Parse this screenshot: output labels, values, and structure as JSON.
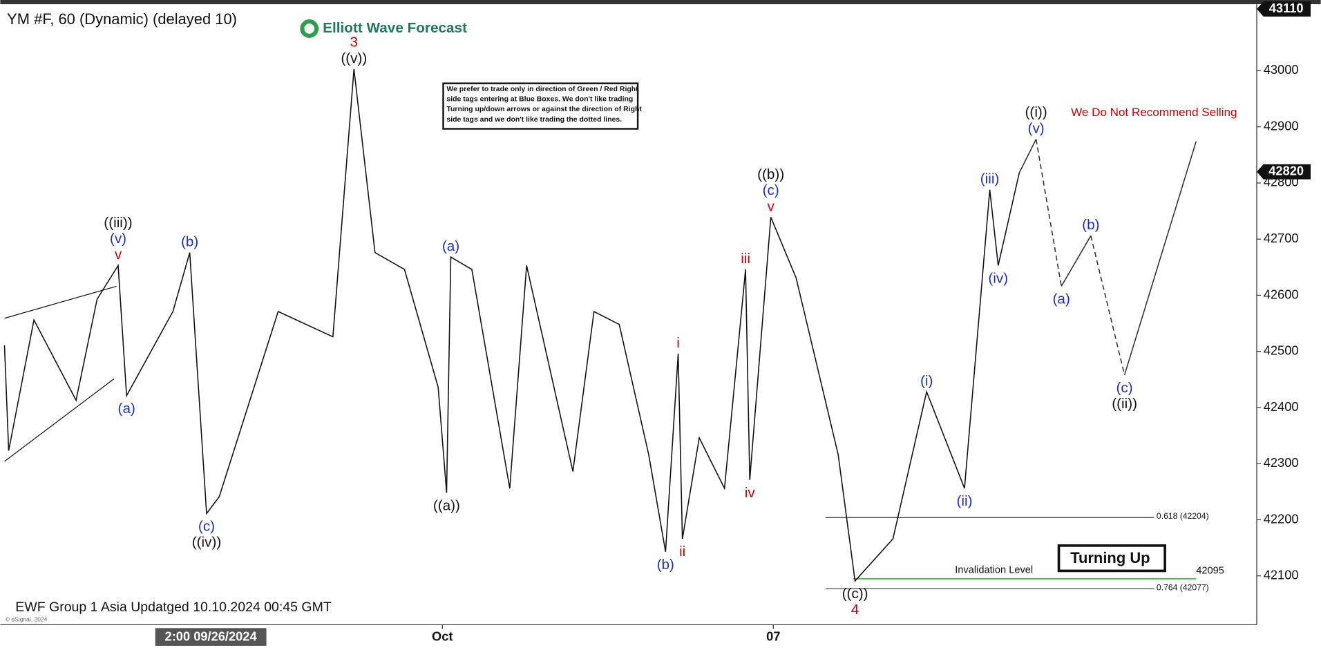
{
  "chart_data": {
    "type": "wave-line",
    "title": "YM #F, 60 (Dynamic) (delayed 10)",
    "logo": "Elliott Wave Forecast",
    "notice": [
      "We prefer to trade only in direction of Green / Red Right",
      "side tags entering at Blue Boxes. We don't like trading",
      "Turning up/down arrows or against the direction of Right",
      "side tags and we don't like trading the dotted lines."
    ],
    "warning": "We Do Not Recommend Selling",
    "footer": "EWF Group 1 Asia Updatged 10.10.2024 00:45 GMT",
    "copyright": "© eSignal, 2024",
    "badge": "Turning Up",
    "cursor_label": {
      "value": 49,
      "label": "2:00 09/26/2024"
    },
    "xlim": [
      0,
      297
    ],
    "xticks": [
      {
        "value": 104,
        "label": "Oct"
      },
      {
        "value": 182.6,
        "label": "07"
      }
    ],
    "ylim": [
      42013,
      43114
    ],
    "yticks": [
      42100,
      42200,
      42300,
      42400,
      42500,
      42600,
      42700,
      42800,
      42900,
      43000
    ],
    "top_price": 43110,
    "last_price": 42820,
    "price": {
      "color": "#111111",
      "points": [
        {
          "x": 0,
          "y": 42511
        },
        {
          "x": 1,
          "y": 42323
        },
        {
          "x": 7,
          "y": 42556
        },
        {
          "x": 17,
          "y": 42413
        },
        {
          "x": 22,
          "y": 42593
        },
        {
          "x": 27,
          "y": 42653,
          "labels": [
            {
              "text": "v",
              "color": "#d00000"
            },
            {
              "text": "(v)",
              "color": "#1a2fbf"
            },
            {
              "text": "((iii))",
              "color": "#111111"
            }
          ]
        },
        {
          "x": 29,
          "y": 42421,
          "labels": [
            {
              "text": "(a)",
              "color": "#1a2fbf"
            }
          ]
        },
        {
          "x": 40,
          "y": 42571
        },
        {
          "x": 44,
          "y": 42676,
          "labels": [
            {
              "text": "(b)",
              "color": "#1a2fbf"
            }
          ]
        },
        {
          "x": 48,
          "y": 42211,
          "labels": [
            {
              "text": "(c)",
              "color": "#1a2fbf"
            },
            {
              "text": "((iv))",
              "color": "#111111"
            }
          ]
        },
        {
          "x": 51,
          "y": 42241
        },
        {
          "x": 65,
          "y": 42571
        },
        {
          "x": 78,
          "y": 42526
        },
        {
          "x": 83,
          "y": 43003,
          "labels": [
            {
              "text": "((v))",
              "color": "#111111"
            },
            {
              "text": "3",
              "color": "#d00000"
            }
          ]
        },
        {
          "x": 88,
          "y": 42676
        },
        {
          "x": 95,
          "y": 42646
        },
        {
          "x": 103,
          "y": 42436
        },
        {
          "x": 105,
          "y": 42248,
          "labels": [
            {
              "text": "((a))",
              "color": "#111111"
            }
          ]
        },
        {
          "x": 106,
          "y": 42668,
          "labels": [
            {
              "text": "(a)",
              "color": "#1a2fbf"
            }
          ]
        },
        {
          "x": 111,
          "y": 42646
        },
        {
          "x": 120,
          "y": 42256
        },
        {
          "x": 124,
          "y": 42653
        },
        {
          "x": 135,
          "y": 42286
        },
        {
          "x": 140,
          "y": 42571
        },
        {
          "x": 146,
          "y": 42548
        },
        {
          "x": 153,
          "y": 42316
        },
        {
          "x": 157,
          "y": 42143,
          "labels": [
            {
              "text": "(b)",
              "color": "#1a2fbf"
            }
          ]
        },
        {
          "x": 160,
          "y": 42496,
          "labels": [
            {
              "text": "i",
              "color": "#d00000"
            }
          ]
        },
        {
          "x": 161,
          "y": 42166,
          "labels": [
            {
              "text": "ii",
              "color": "#d00000"
            }
          ]
        },
        {
          "x": 165,
          "y": 42346
        },
        {
          "x": 171,
          "y": 42256
        },
        {
          "x": 176,
          "y": 42646,
          "labels": [
            {
              "text": "iii",
              "color": "#d00000"
            }
          ]
        },
        {
          "x": 177,
          "y": 42271,
          "labels": [
            {
              "text": "iv",
              "color": "#d00000"
            }
          ]
        },
        {
          "x": 182,
          "y": 42739,
          "labels": [
            {
              "text": "v",
              "color": "#d00000"
            },
            {
              "text": "(c)",
              "color": "#1a2fbf"
            },
            {
              "text": "((b))",
              "color": "#111111"
            }
          ]
        },
        {
          "x": 188,
          "y": 42631
        },
        {
          "x": 198,
          "y": 42316
        },
        {
          "x": 202,
          "y": 42091,
          "labels": [
            {
              "text": "((c))",
              "color": "#111111"
            },
            {
              "text": "4",
              "color": "#d00000"
            }
          ]
        },
        {
          "x": 211,
          "y": 42166
        },
        {
          "x": 219,
          "y": 42428,
          "labels": [
            {
              "text": "(i)",
              "color": "#1a2fbf"
            }
          ]
        },
        {
          "x": 228,
          "y": 42256,
          "labels": [
            {
              "text": "(ii)",
              "color": "#1a2fbf"
            }
          ]
        },
        {
          "x": 234,
          "y": 42788,
          "labels": [
            {
              "text": "(iii)",
              "color": "#1a2fbf"
            }
          ]
        },
        {
          "x": 236,
          "y": 42653,
          "labels": [
            {
              "text": "(iv)",
              "color": "#1a2fbf"
            }
          ]
        },
        {
          "x": 241,
          "y": 42818
        }
      ]
    },
    "projection": {
      "color": "#333333",
      "dashed": [
        false,
        true,
        false,
        true,
        false
      ],
      "points": [
        {
          "x": 241,
          "y": 42818
        },
        {
          "x": 245,
          "y": 42878,
          "labels": [
            {
              "text": "(v)",
              "color": "#1a2fbf"
            },
            {
              "text": "((i))",
              "color": "#111111"
            }
          ]
        },
        {
          "x": 251,
          "y": 42616,
          "labels": [
            {
              "text": "(a)",
              "color": "#1a2fbf"
            }
          ]
        },
        {
          "x": 258,
          "y": 42706,
          "labels": [
            {
              "text": "(b)",
              "color": "#1a2fbf"
            }
          ]
        },
        {
          "x": 266,
          "y": 42458,
          "labels": [
            {
              "text": "(c)",
              "color": "#1a2fbf"
            },
            {
              "text": "((ii))",
              "color": "#111111"
            }
          ]
        },
        {
          "x": 283,
          "y": 42874
        }
      ]
    },
    "levels": [
      {
        "label": "0.618 (42204)",
        "value": 42204,
        "color": "#333333"
      },
      {
        "label": "0.764 (42077)",
        "value": 42077,
        "color": "#333333"
      }
    ],
    "invalidation": {
      "label": "Invalidation Level",
      "value": 42095,
      "color": "#33cc33"
    }
  }
}
